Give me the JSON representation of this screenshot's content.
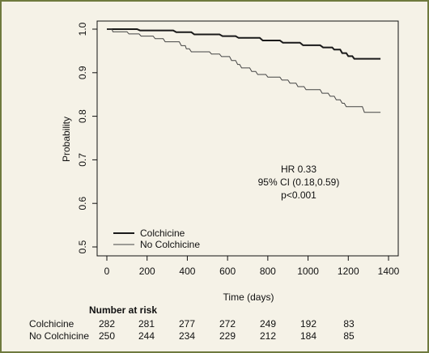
{
  "chart_data": {
    "type": "line",
    "title": "",
    "xlabel": "Time (days)",
    "ylabel": "Probability",
    "xlim": [
      0,
      1400
    ],
    "ylim": [
      0.5,
      1.0
    ],
    "x_ticks": [
      "0",
      "200",
      "400",
      "600",
      "800",
      "1000",
      "1200",
      "1400"
    ],
    "y_ticks": [
      "0.5",
      "0.6",
      "0.7",
      "0.8",
      "0.9",
      "1.0"
    ],
    "grid": false,
    "legend_position": "bottom-left",
    "series": [
      {
        "name": "Colchicine",
        "color": "#1a1a1a",
        "points": [
          [
            0,
            1.0
          ],
          [
            150,
            1.0
          ],
          [
            165,
            0.997
          ],
          [
            330,
            0.997
          ],
          [
            345,
            0.993
          ],
          [
            420,
            0.993
          ],
          [
            435,
            0.988
          ],
          [
            560,
            0.988
          ],
          [
            575,
            0.984
          ],
          [
            640,
            0.984
          ],
          [
            655,
            0.98
          ],
          [
            760,
            0.98
          ],
          [
            775,
            0.974
          ],
          [
            860,
            0.974
          ],
          [
            875,
            0.969
          ],
          [
            960,
            0.969
          ],
          [
            975,
            0.963
          ],
          [
            1060,
            0.963
          ],
          [
            1075,
            0.958
          ],
          [
            1120,
            0.958
          ],
          [
            1130,
            0.953
          ],
          [
            1160,
            0.953
          ],
          [
            1170,
            0.945
          ],
          [
            1190,
            0.945
          ],
          [
            1200,
            0.938
          ],
          [
            1220,
            0.938
          ],
          [
            1230,
            0.932
          ],
          [
            1360,
            0.932
          ]
        ]
      },
      {
        "name": "No Colchicine",
        "color": "#444444",
        "points": [
          [
            0,
            1.0
          ],
          [
            25,
            1.0
          ],
          [
            30,
            0.994
          ],
          [
            100,
            0.994
          ],
          [
            110,
            0.989
          ],
          [
            160,
            0.989
          ],
          [
            170,
            0.984
          ],
          [
            230,
            0.984
          ],
          [
            240,
            0.978
          ],
          [
            280,
            0.978
          ],
          [
            290,
            0.971
          ],
          [
            360,
            0.971
          ],
          [
            370,
            0.962
          ],
          [
            390,
            0.962
          ],
          [
            395,
            0.955
          ],
          [
            410,
            0.955
          ],
          [
            420,
            0.948
          ],
          [
            510,
            0.948
          ],
          [
            520,
            0.943
          ],
          [
            560,
            0.943
          ],
          [
            570,
            0.937
          ],
          [
            610,
            0.937
          ],
          [
            620,
            0.928
          ],
          [
            640,
            0.928
          ],
          [
            650,
            0.919
          ],
          [
            660,
            0.919
          ],
          [
            670,
            0.911
          ],
          [
            710,
            0.911
          ],
          [
            720,
            0.903
          ],
          [
            740,
            0.903
          ],
          [
            750,
            0.896
          ],
          [
            790,
            0.896
          ],
          [
            800,
            0.89
          ],
          [
            860,
            0.89
          ],
          [
            870,
            0.883
          ],
          [
            900,
            0.883
          ],
          [
            910,
            0.876
          ],
          [
            940,
            0.876
          ],
          [
            950,
            0.868
          ],
          [
            980,
            0.868
          ],
          [
            990,
            0.861
          ],
          [
            1060,
            0.861
          ],
          [
            1070,
            0.853
          ],
          [
            1100,
            0.853
          ],
          [
            1110,
            0.846
          ],
          [
            1130,
            0.846
          ],
          [
            1140,
            0.838
          ],
          [
            1160,
            0.838
          ],
          [
            1170,
            0.83
          ],
          [
            1180,
            0.83
          ],
          [
            1190,
            0.822
          ],
          [
            1270,
            0.822
          ],
          [
            1280,
            0.809
          ],
          [
            1360,
            0.809
          ]
        ]
      }
    ],
    "annotations": [
      "HR 0.33",
      "95% CI (0.18,0.59)",
      "p<0.001"
    ]
  },
  "risk_table": {
    "title": "Number at risk",
    "rows": [
      {
        "label": "Colchicine",
        "values": [
          "282",
          "281",
          "277",
          "272",
          "249",
          "192",
          "83"
        ]
      },
      {
        "label": "No Colchicine",
        "values": [
          "250",
          "244",
          "234",
          "229",
          "212",
          "184",
          "85"
        ]
      }
    ]
  }
}
